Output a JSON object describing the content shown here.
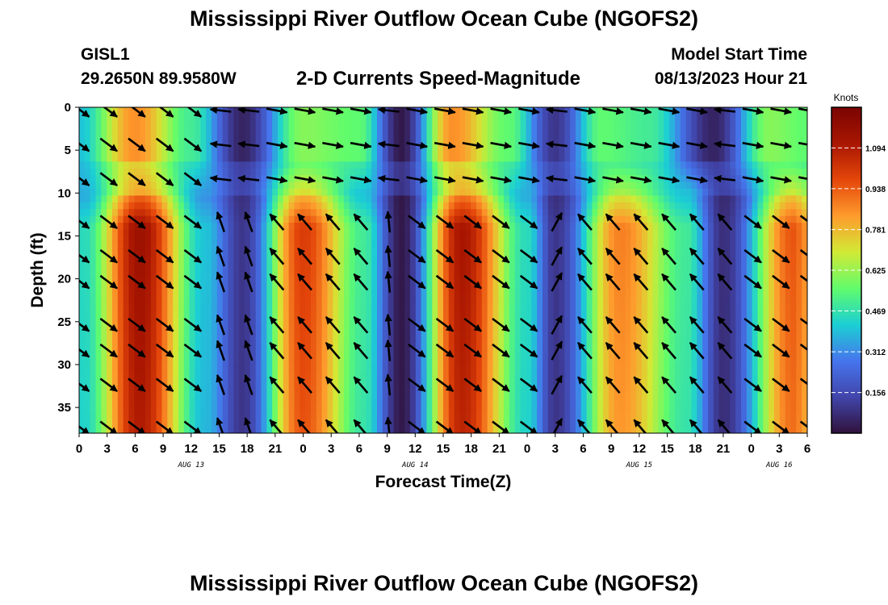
{
  "header": {
    "title": "Mississippi River Outflow Ocean Cube (NGOFS2)",
    "station_id": "GISL1",
    "station_coords": "29.2650N  89.9580W",
    "plot_title": "2-D Currents Speed-Magnitude",
    "model_start_label": "Model Start Time",
    "model_start_value": "08/13/2023 Hour 21"
  },
  "footer": {
    "title": "Mississippi River Outflow Ocean Cube (NGOFS2)"
  },
  "chart_data": {
    "type": "heatmap",
    "xlabel": "Forecast Time(Z)",
    "ylabel": "Depth (ft)",
    "x_range_hours": [
      0,
      78
    ],
    "x_tick_labels": [
      "0",
      "3",
      "6",
      "9",
      "12",
      "15",
      "18",
      "21",
      "0",
      "3",
      "6",
      "9",
      "12",
      "15",
      "18",
      "21",
      "0",
      "3",
      "6",
      "9",
      "12",
      "15",
      "18",
      "21",
      "0",
      "3",
      "6"
    ],
    "date_labels": [
      {
        "label": "AUG 13",
        "at_hour": 12
      },
      {
        "label": "AUG 14",
        "at_hour": 36
      },
      {
        "label": "AUG 15",
        "at_hour": 60
      },
      {
        "label": "AUG 16",
        "at_hour": 75
      }
    ],
    "y_range_ft": [
      0,
      38
    ],
    "y_reversed": true,
    "y_ticks": [
      0,
      5,
      10,
      15,
      20,
      25,
      30,
      35
    ],
    "colorbar": {
      "title": "Knots",
      "range": [
        0,
        1.25
      ],
      "tick_labels": [
        "1.094",
        "0.938",
        "0.781",
        "0.625",
        "0.469",
        "0.312",
        "0.156"
      ],
      "tick_values": [
        1.094,
        0.938,
        0.781,
        0.625,
        0.469,
        0.312,
        0.156
      ],
      "colormap": [
        "#30123b",
        "#4145ab",
        "#4675ed",
        "#1bcfd4",
        "#61fc6c",
        "#d2e935",
        "#fe9b2d",
        "#e4460a",
        "#a91601",
        "#7a0403"
      ]
    },
    "depth_levels_ft": [
      0,
      4,
      8,
      13,
      17,
      20,
      25,
      28,
      32,
      37
    ],
    "speed_peaks": [
      {
        "hour": 0.5,
        "speed": 0.45
      },
      {
        "hour": 6.5,
        "speed": 1.15
      },
      {
        "hour": 13.5,
        "speed": 0.4
      },
      {
        "hour": 17.5,
        "speed": 0.1
      },
      {
        "hour": 24,
        "speed": 1.0
      },
      {
        "hour": 30.5,
        "speed": 0.5
      },
      {
        "hour": 34.5,
        "speed": 0.02
      },
      {
        "hour": 41,
        "speed": 1.12
      },
      {
        "hour": 48,
        "speed": 0.45
      },
      {
        "hour": 51,
        "speed": 0.1
      },
      {
        "hour": 58,
        "speed": 0.88
      },
      {
        "hour": 65,
        "speed": 0.5
      },
      {
        "hour": 69,
        "speed": 0.08
      },
      {
        "hour": 76.5,
        "speed": 0.95
      },
      {
        "hour": 78,
        "speed": 0.85
      }
    ],
    "surface_speed_peaks": [
      {
        "hour": 0,
        "speed": 0.4
      },
      {
        "hour": 6,
        "speed": 0.85
      },
      {
        "hour": 12,
        "speed": 0.5
      },
      {
        "hour": 17.5,
        "speed": 0.05
      },
      {
        "hour": 24,
        "speed": 0.6
      },
      {
        "hour": 30,
        "speed": 0.55
      },
      {
        "hour": 34.5,
        "speed": 0.02
      },
      {
        "hour": 40,
        "speed": 0.85
      },
      {
        "hour": 46,
        "speed": 0.55
      },
      {
        "hour": 51,
        "speed": 0.1
      },
      {
        "hour": 56,
        "speed": 0.55
      },
      {
        "hour": 61,
        "speed": 0.5
      },
      {
        "hour": 68,
        "speed": 0.05
      },
      {
        "hour": 74,
        "speed": 0.6
      },
      {
        "hour": 78,
        "speed": 0.55
      }
    ],
    "vector_hours": [
      0,
      3,
      6,
      9,
      12,
      15,
      18,
      21,
      24,
      27,
      30,
      33,
      36,
      39,
      42,
      45,
      48,
      51,
      54,
      57,
      60,
      63,
      66,
      69,
      72,
      75,
      78
    ],
    "vector_direction_phases": [
      {
        "hour": 0,
        "surface": "southeast",
        "subsurface": "southeast"
      },
      {
        "hour": 15,
        "surface": "west",
        "subsurface": "north-northwest"
      },
      {
        "hour": 21,
        "surface": "east",
        "subsurface": "northwest"
      },
      {
        "hour": 33,
        "surface": "west",
        "subsurface": "north"
      },
      {
        "hour": 36,
        "surface": "east",
        "subsurface": "southeast"
      },
      {
        "hour": 51,
        "surface": "west",
        "subsurface": "northeast"
      },
      {
        "hour": 54,
        "surface": "east",
        "subsurface": "northwest"
      },
      {
        "hour": 69,
        "surface": "west",
        "subsurface": "northwest"
      },
      {
        "hour": 72,
        "surface": "east",
        "subsurface": "southeast"
      }
    ]
  }
}
